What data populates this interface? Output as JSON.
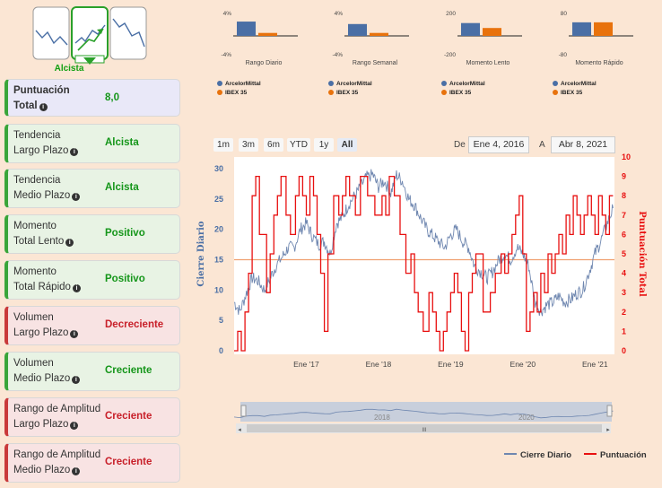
{
  "logo": {
    "label": "Alcista",
    "icon": "trend-panels-icon"
  },
  "cards": [
    {
      "line1": "Puntuación",
      "line2": "Total",
      "value": "8,0",
      "style": "blue"
    },
    {
      "line1": "Tendencia",
      "line2": "Largo Plazo",
      "value": "Alcista",
      "style": "green"
    },
    {
      "line1": "Tendencia",
      "line2": "Medio Plazo",
      "value": "Alcista",
      "style": "green"
    },
    {
      "line1": "Momento",
      "line2": "Total Lento",
      "value": "Positivo",
      "style": "green"
    },
    {
      "line1": "Momento",
      "line2": "Total Rápido",
      "value": "Positivo",
      "style": "green"
    },
    {
      "line1": "Volumen",
      "line2": "Largo Plazo",
      "value": "Decreciente",
      "style": "red"
    },
    {
      "line1": "Volumen",
      "line2": "Medio Plazo",
      "value": "Creciente",
      "style": "green"
    },
    {
      "line1": "Rango de Amplitud",
      "line2": "Largo Plazo",
      "value": "Creciente",
      "style": "red"
    },
    {
      "line1": "Rango de Amplitud",
      "line2": "Medio Plazo",
      "value": "Creciente",
      "style": "red"
    }
  ],
  "range_selector": {
    "buttons": [
      "1m",
      "3m",
      "6m",
      "YTD",
      "1y",
      "All"
    ],
    "active": "All",
    "from_label": "De",
    "from_value": "Ene 4, 2016",
    "to_label": "A",
    "to_value": "Abr 8, 2021"
  },
  "colors": {
    "stock": "#4a6fa5",
    "index": "#e8720c",
    "close": "#6f87b0",
    "score": "#e81010",
    "threshold": "#f0a070"
  },
  "chart_data": [
    {
      "type": "bar",
      "title": "Rango Diario",
      "series": [
        {
          "name": "ArcelorMittal",
          "value": 2.9
        },
        {
          "name": "IBEX 35",
          "value": 0.6
        }
      ],
      "ylim": [
        -4,
        4
      ],
      "ytick_labels": [
        "4%",
        "-4%"
      ]
    },
    {
      "type": "bar",
      "title": "Rango Semanal",
      "series": [
        {
          "name": "ArcelorMittal",
          "value": 2.4
        },
        {
          "name": "IBEX 35",
          "value": 0.6
        }
      ],
      "ylim": [
        -4,
        4
      ],
      "ytick_labels": [
        "4%",
        "-4%"
      ]
    },
    {
      "type": "bar",
      "title": "Momento Lento",
      "series": [
        {
          "name": "ArcelorMittal",
          "value": 130
        },
        {
          "name": "IBEX 35",
          "value": 80
        }
      ],
      "ylim": [
        -200,
        200
      ],
      "ytick_labels": [
        "200",
        "-200"
      ]
    },
    {
      "type": "bar",
      "title": "Momento Rápido",
      "series": [
        {
          "name": "ArcelorMittal",
          "value": 55
        },
        {
          "name": "IBEX 35",
          "value": 55
        }
      ],
      "ylim": [
        -80,
        80
      ],
      "ytick_labels": [
        "80",
        "-80"
      ]
    },
    {
      "type": "line",
      "title": "",
      "x_range": [
        2016.0,
        2021.27
      ],
      "x_tick_labels": [
        "Ene '17",
        "Ene '18",
        "Ene '19",
        "Ene '20",
        "Ene '21"
      ],
      "x_tick_values": [
        2017,
        2018,
        2019,
        2020,
        2021
      ],
      "y_left": {
        "label": "Cierre Diario",
        "ylim": [
          0,
          30
        ],
        "tick_labels": [
          "0",
          "5",
          "10",
          "15",
          "20",
          "25",
          "30"
        ]
      },
      "y_right": {
        "label": "Puntuación Total",
        "ylim": [
          0,
          10
        ],
        "tick_labels": [
          "0",
          "1",
          "2",
          "3",
          "4",
          "5",
          "6",
          "7",
          "8",
          "9",
          "10"
        ]
      },
      "threshold_left": 15,
      "series": [
        {
          "name": "Cierre Diario",
          "axis": "left",
          "x": [
            2016.0,
            2016.08,
            2016.17,
            2016.25,
            2016.33,
            2016.42,
            2016.5,
            2016.58,
            2016.67,
            2016.75,
            2016.83,
            2016.92,
            2017.0,
            2017.08,
            2017.17,
            2017.25,
            2017.33,
            2017.42,
            2017.5,
            2017.58,
            2017.67,
            2017.75,
            2017.83,
            2017.92,
            2018.0,
            2018.08,
            2018.17,
            2018.25,
            2018.33,
            2018.42,
            2018.5,
            2018.58,
            2018.67,
            2018.75,
            2018.83,
            2018.92,
            2019.0,
            2019.08,
            2019.17,
            2019.25,
            2019.33,
            2019.42,
            2019.5,
            2019.58,
            2019.67,
            2019.75,
            2019.83,
            2019.92,
            2020.0,
            2020.08,
            2020.17,
            2020.25,
            2020.33,
            2020.42,
            2020.5,
            2020.58,
            2020.67,
            2020.75,
            2020.83,
            2020.92,
            2021.0,
            2021.08,
            2021.17,
            2021.25
          ],
          "y": [
            8,
            6.5,
            9.5,
            12,
            11.5,
            10,
            12,
            14,
            15.5,
            17,
            17,
            20,
            21,
            19,
            17.5,
            18,
            16,
            21,
            22,
            24,
            25.5,
            27,
            28.5,
            29,
            27,
            28,
            26,
            29,
            28,
            25,
            24,
            22,
            20,
            19,
            18,
            17,
            19,
            20,
            18,
            17,
            14,
            13,
            12,
            13,
            15,
            16,
            15,
            17,
            16,
            14,
            8,
            6.5,
            7.5,
            8,
            9,
            8,
            8.5,
            9.5,
            10,
            13,
            16,
            18,
            21,
            23.5
          ]
        },
        {
          "name": "Puntuación",
          "axis": "right",
          "x": [
            2016.0,
            2016.05,
            2016.1,
            2016.15,
            2016.2,
            2016.25,
            2016.3,
            2016.35,
            2016.45,
            2016.5,
            2016.55,
            2016.6,
            2016.65,
            2016.72,
            2016.78,
            2016.85,
            2016.9,
            2016.95,
            2017.0,
            2017.05,
            2017.1,
            2017.15,
            2017.2,
            2017.25,
            2017.3,
            2017.38,
            2017.45,
            2017.5,
            2017.55,
            2017.6,
            2017.68,
            2017.75,
            2017.85,
            2017.95,
            2018.05,
            2018.1,
            2018.15,
            2018.22,
            2018.3,
            2018.38,
            2018.45,
            2018.5,
            2018.55,
            2018.62,
            2018.7,
            2018.75,
            2018.8,
            2018.85,
            2018.9,
            2018.95,
            2019.0,
            2019.05,
            2019.1,
            2019.15,
            2019.2,
            2019.25,
            2019.3,
            2019.35,
            2019.45,
            2019.55,
            2019.62,
            2019.7,
            2019.75,
            2019.8,
            2019.85,
            2019.9,
            2019.95,
            2020.0,
            2020.05,
            2020.1,
            2020.15,
            2020.2,
            2020.25,
            2020.3,
            2020.35,
            2020.4,
            2020.45,
            2020.5,
            2020.55,
            2020.6,
            2020.65,
            2020.7,
            2020.75,
            2020.8,
            2020.85,
            2020.9,
            2020.95,
            2021.0,
            2021.05,
            2021.1,
            2021.15,
            2021.2,
            2021.25
          ],
          "y": [
            0,
            1,
            0,
            2,
            4,
            8,
            9,
            6,
            3,
            5,
            7,
            8,
            9,
            7,
            6,
            8,
            9,
            8,
            7,
            9,
            8,
            6,
            4,
            1,
            5,
            8,
            7,
            8,
            9,
            8,
            7,
            9,
            8,
            7,
            8,
            7,
            9,
            8,
            6,
            4,
            5,
            3,
            2,
            1,
            3,
            2,
            1,
            0,
            1,
            2,
            3,
            4,
            3,
            1,
            0,
            3,
            4,
            5,
            2,
            3,
            4,
            5,
            4,
            5,
            6,
            7,
            8,
            5,
            1,
            2,
            3,
            2,
            4,
            3,
            5,
            4,
            5,
            6,
            5,
            7,
            6,
            8,
            7,
            6,
            7,
            8,
            7,
            6,
            8,
            7,
            6,
            8,
            8
          ]
        }
      ]
    }
  ],
  "navigator": {
    "labels": [
      "2018",
      "2020"
    ],
    "scroll_glyph": "III"
  },
  "legend": {
    "close": "Cierre Diario",
    "score": "Puntuación"
  }
}
